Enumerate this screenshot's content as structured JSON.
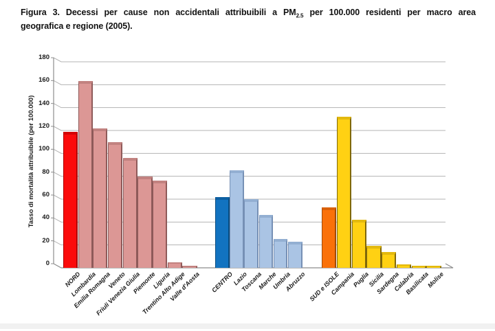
{
  "figure_caption": {
    "line1_pre": "Figura 3. Decessi per cause non accidentali attribuibili a PM",
    "line1_sub": "2.5",
    "line1_post": " per 100.000 residenti per macro area",
    "line2": "geografica e regione (2005)."
  },
  "chart_data": {
    "type": "bar",
    "title": "Figura 3. Decessi per cause non accidentali attribuibili a PM2.5 per 100.000 residenti per macro area geografica e regione (2005).",
    "xlabel": "",
    "ylabel": "Tasso di mortalità attribuibile (per 100.000)",
    "ylim": [
      0,
      180
    ],
    "yticks": [
      0,
      20,
      40,
      60,
      80,
      100,
      120,
      140,
      160,
      180
    ],
    "grid": true,
    "legend": false,
    "palette": {
      "macro_nord": "#FB0B0B",
      "region_nord": "#DC9795",
      "macro_centro": "#1273C0",
      "region_centro": "#AAC4E4",
      "macro_sud": "#FA7109",
      "region_sud": "#FFD113",
      "grid_line": "#B3B3B3",
      "axis_line": "#8C8C8C"
    },
    "bars": [
      {
        "label": "NORD",
        "value": 119,
        "macro": "NORD",
        "kind": "macro",
        "color": "#FB0B0B",
        "edge": "#A80000",
        "top": "#D40505"
      },
      {
        "label": "Lombardia",
        "value": 163,
        "macro": "NORD",
        "kind": "region",
        "color": "#DC9795",
        "edge": "#8E5A59",
        "top": "#C28280"
      },
      {
        "label": "Emilia Romagna",
        "value": 122,
        "macro": "NORD",
        "kind": "region",
        "color": "#DC9795",
        "edge": "#8E5A59",
        "top": "#C28280"
      },
      {
        "label": "Veneto",
        "value": 110,
        "macro": "NORD",
        "kind": "region",
        "color": "#DC9795",
        "edge": "#8E5A59",
        "top": "#C28280"
      },
      {
        "label": "Friuli Venezia Giulia",
        "value": 96,
        "macro": "NORD",
        "kind": "region",
        "color": "#DC9795",
        "edge": "#8E5A59",
        "top": "#C28280"
      },
      {
        "label": "Piemonte",
        "value": 80,
        "macro": "NORD",
        "kind": "region",
        "color": "#DC9795",
        "edge": "#8E5A59",
        "top": "#C28280"
      },
      {
        "label": "Liguria",
        "value": 76,
        "macro": "NORD",
        "kind": "region",
        "color": "#DC9795",
        "edge": "#8E5A59",
        "top": "#C28280"
      },
      {
        "label": "Trentino Alto Adige",
        "value": 5,
        "macro": "NORD",
        "kind": "region",
        "color": "#DC9795",
        "edge": "#8E5A59",
        "top": "#C28280"
      },
      {
        "label": "Valle d'Aosta",
        "value": 2,
        "macro": "NORD",
        "kind": "region",
        "color": "#DC9795",
        "edge": "#8E5A59",
        "top": "#C28280"
      },
      {
        "label": "CENTRO",
        "value": 62,
        "macro": "CENTRO",
        "kind": "macro",
        "color": "#1273C0",
        "edge": "#0A4C80",
        "top": "#0E60A2"
      },
      {
        "label": "Lazio",
        "value": 85,
        "macro": "CENTRO",
        "kind": "region",
        "color": "#AAC4E4",
        "edge": "#7690B5",
        "top": "#93AFD2"
      },
      {
        "label": "Toscana",
        "value": 60,
        "macro": "CENTRO",
        "kind": "region",
        "color": "#AAC4E4",
        "edge": "#7690B5",
        "top": "#93AFD2"
      },
      {
        "label": "Marche",
        "value": 46,
        "macro": "CENTRO",
        "kind": "region",
        "color": "#AAC4E4",
        "edge": "#7690B5",
        "top": "#93AFD2"
      },
      {
        "label": "Umbria",
        "value": 25,
        "macro": "CENTRO",
        "kind": "region",
        "color": "#AAC4E4",
        "edge": "#7690B5",
        "top": "#93AFD2"
      },
      {
        "label": "Abruzzo",
        "value": 23,
        "macro": "CENTRO",
        "kind": "region",
        "color": "#AAC4E4",
        "edge": "#7690B5",
        "top": "#93AFD2"
      },
      {
        "label": "SUD e ISOLE",
        "value": 53,
        "macro": "SUD e ISOLE",
        "kind": "macro",
        "color": "#FA7109",
        "edge": "#9E4A06",
        "top": "#DB6006"
      },
      {
        "label": "Campania",
        "value": 132,
        "macro": "SUD e ISOLE",
        "kind": "region",
        "color": "#FFD113",
        "edge": "#7E670B",
        "top": "#E3B90E"
      },
      {
        "label": "Puglia",
        "value": 42,
        "macro": "SUD e ISOLE",
        "kind": "region",
        "color": "#FFD113",
        "edge": "#7E670B",
        "top": "#E3B90E"
      },
      {
        "label": "Sicilia",
        "value": 19,
        "macro": "SUD e ISOLE",
        "kind": "region",
        "color": "#FFD113",
        "edge": "#7E670B",
        "top": "#E3B90E"
      },
      {
        "label": "Sardegna",
        "value": 14,
        "macro": "SUD e ISOLE",
        "kind": "region",
        "color": "#FFD113",
        "edge": "#7E670B",
        "top": "#E3B90E"
      },
      {
        "label": "Calabria",
        "value": 3,
        "macro": "SUD e ISOLE",
        "kind": "region",
        "color": "#FFD113",
        "edge": "#7E670B",
        "top": "#E3B90E"
      },
      {
        "label": "Basilicata",
        "value": 2,
        "macro": "SUD e ISOLE",
        "kind": "region",
        "color": "#FFD113",
        "edge": "#7E670B",
        "top": "#E3B90E"
      },
      {
        "label": "Molise",
        "value": 1,
        "macro": "SUD e ISOLE",
        "kind": "region",
        "color": "#FFD113",
        "edge": "#7E670B",
        "top": "#E3B90E"
      }
    ]
  }
}
